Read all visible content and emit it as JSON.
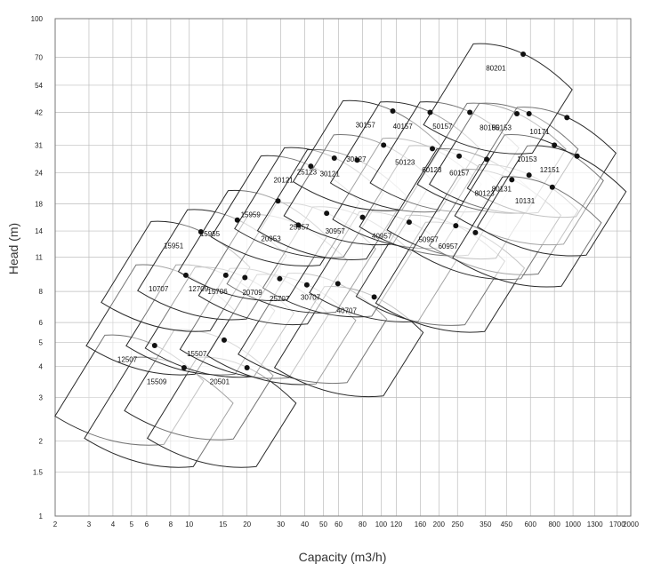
{
  "chart_data": {
    "type": "scatter",
    "title": "",
    "xlabel": "Capacity (m3/h)",
    "ylabel": "Head (m)",
    "x_scale": "log",
    "y_scale": "log",
    "xlim": [
      2,
      2000
    ],
    "ylim": [
      1,
      100
    ],
    "grid": true,
    "x_ticks": [
      "2",
      "3",
      "4",
      "5",
      "6",
      "8",
      "10",
      "15",
      "20",
      "30",
      "40",
      "50",
      "60",
      "80",
      "100",
      "120",
      "160",
      "200",
      "250",
      "350",
      "450",
      "600",
      "800",
      "1000",
      "1300",
      "1700",
      "2000"
    ],
    "y_ticks": [
      "1",
      "1.5",
      "2",
      "3",
      "4",
      "5",
      "6",
      "8",
      "11",
      "14",
      "18",
      "24",
      "31",
      "42",
      "54",
      "70",
      "100"
    ],
    "series": [
      {
        "name": "12507",
        "bep": [
          6.6,
          4.85
        ]
      },
      {
        "name": "15509",
        "bep": [
          9.4,
          3.95
        ]
      },
      {
        "name": "15507",
        "bep": [
          15.2,
          5.1
        ]
      },
      {
        "name": "20501",
        "bep": [
          20,
          3.95
        ]
      },
      {
        "name": "10707",
        "bep": [
          9.6,
          9.3
        ]
      },
      {
        "name": "12709",
        "bep": [
          15.5,
          9.3
        ]
      },
      {
        "name": "15706",
        "bep": [
          19.5,
          9.1
        ]
      },
      {
        "name": "20709",
        "bep": [
          29.6,
          9.0
        ]
      },
      {
        "name": "25707",
        "bep": [
          41,
          8.5
        ]
      },
      {
        "name": "30707",
        "bep": [
          59.5,
          8.6
        ]
      },
      {
        "name": "40707",
        "bep": [
          92,
          7.6
        ]
      },
      {
        "name": "15951",
        "bep": [
          11.5,
          13.9
        ]
      },
      {
        "name": "15955",
        "bep": [
          17.8,
          15.5
        ]
      },
      {
        "name": "20953",
        "bep": [
          37,
          14.8
        ]
      },
      {
        "name": "25957",
        "bep": [
          52,
          16.5
        ]
      },
      {
        "name": "30957",
        "bep": [
          80,
          15.9
        ]
      },
      {
        "name": "40957",
        "bep": [
          140,
          15.2
        ]
      },
      {
        "name": "50957",
        "bep": [
          245,
          14.7
        ]
      },
      {
        "name": "60957",
        "bep": [
          310,
          13.8
        ]
      },
      {
        "name": "15959",
        "bep": [
          29,
          18.5
        ]
      },
      {
        "name": "20121",
        "bep": [
          43,
          25.5
        ]
      },
      {
        "name": "25123",
        "bep": [
          57,
          27.5
        ]
      },
      {
        "name": "30121",
        "bep": [
          75,
          27.0
        ]
      },
      {
        "name": "30127",
        "bep": [
          103,
          31.0
        ]
      },
      {
        "name": "50123",
        "bep": [
          185,
          30.0
        ]
      },
      {
        "name": "60123",
        "bep": [
          255,
          28.0
        ]
      },
      {
        "name": "30157",
        "bep": [
          115,
          42.5
        ]
      },
      {
        "name": "40157",
        "bep": [
          180,
          42.0
        ]
      },
      {
        "name": "50157",
        "bep": [
          290,
          42.0
        ]
      },
      {
        "name": "60157",
        "bep": [
          355,
          27.2
        ]
      },
      {
        "name": "80131",
        "bep": [
          590,
          23.5
        ]
      },
      {
        "name": "80123",
        "bep": [
          480,
          22.5
        ]
      },
      {
        "name": "80155",
        "bep": [
          510,
          41.5
        ]
      },
      {
        "name": "80153",
        "bep": [
          590,
          41.5
        ]
      },
      {
        "name": "10171",
        "bep": [
          930,
          40.0
        ]
      },
      {
        "name": "10153",
        "bep": [
          800,
          31.0
        ]
      },
      {
        "name": "10131",
        "bep": [
          780,
          21.0
        ]
      },
      {
        "name": "12151",
        "bep": [
          1050,
          28.0
        ]
      },
      {
        "name": "80201",
        "bep": [
          550,
          72.0
        ]
      }
    ]
  }
}
